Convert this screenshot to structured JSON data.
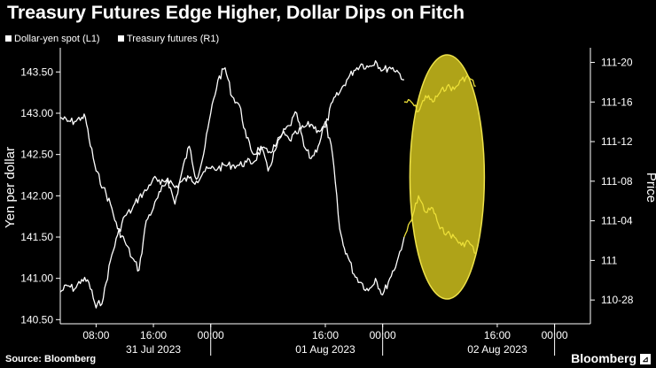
{
  "chart_data": {
    "type": "line",
    "title": "Treasury Futures Edge Higher, Dollar Dips on Fitch",
    "left_axis": {
      "label": "Yen per dollar",
      "ticks": [
        "143.50",
        "143.00",
        "142.50",
        "142.00",
        "141.50",
        "141.00",
        "140.50"
      ],
      "tick_values": [
        143.5,
        143.0,
        142.5,
        142.0,
        141.5,
        141.0,
        140.5
      ],
      "range": [
        140.45,
        143.75
      ]
    },
    "right_axis": {
      "label": "Price",
      "ticks": [
        "111-20",
        "111-16",
        "111-12",
        "111-08",
        "111-04",
        "111",
        "110-28"
      ],
      "tick_values": [
        111.625,
        111.5,
        111.375,
        111.25,
        111.125,
        111.0,
        110.875
      ],
      "range": [
        110.8,
        111.66
      ]
    },
    "x_axis": {
      "time_ticks": [
        "08:00",
        "16:00",
        "00:00",
        "16:00",
        "00:00",
        "16:00",
        "00:00"
      ],
      "time_tick_hours": [
        8,
        16,
        24,
        40,
        48,
        64,
        72
      ],
      "date_labels": [
        {
          "text": "31 Jul 2023",
          "hour": 16
        },
        {
          "text": "01 Aug 2023",
          "hour": 40
        },
        {
          "text": "02 Aug 2023",
          "hour": 64
        }
      ],
      "range_hours": [
        3,
        77
      ]
    },
    "series": [
      {
        "name": "Dollar-yen spot (L1)",
        "axis": "left",
        "x": [
          3,
          4,
          5,
          6,
          6.5,
          7,
          8,
          9,
          10,
          11,
          12,
          13,
          14,
          15,
          16,
          17,
          18,
          19,
          20,
          21,
          22,
          23,
          24,
          25,
          26,
          27,
          28,
          29,
          30,
          31,
          32,
          33,
          34,
          35,
          36,
          37,
          38,
          39,
          40,
          41,
          42,
          42.5,
          43,
          44,
          45,
          46,
          47,
          48,
          49,
          50,
          51
        ],
        "values": [
          142.95,
          142.9,
          142.9,
          142.95,
          142.95,
          142.7,
          142.3,
          142.1,
          141.9,
          141.6,
          141.45,
          141.25,
          141.1,
          141.7,
          141.85,
          142.05,
          142.2,
          141.9,
          142.3,
          142.6,
          142.2,
          142.5,
          143.0,
          143.4,
          143.55,
          143.2,
          143.1,
          142.7,
          142.5,
          142.6,
          142.3,
          142.55,
          142.75,
          142.85,
          143.0,
          142.6,
          142.45,
          142.6,
          142.9,
          142.5,
          141.6,
          141.4,
          141.3,
          141.05,
          140.95,
          140.85,
          141.0,
          140.8,
          141.0,
          141.2,
          141.5
        ]
      },
      {
        "name": "Treasury futures (R1)",
        "axis": "right",
        "x": [
          3,
          4,
          5,
          6,
          7,
          8,
          9,
          10,
          11,
          12,
          13,
          14,
          15,
          16,
          17,
          18,
          19,
          20,
          21,
          22,
          23,
          24,
          25,
          26,
          27,
          28,
          29,
          30,
          31,
          32,
          33,
          34,
          35,
          36,
          37,
          38,
          39,
          40,
          41,
          42,
          43,
          44,
          45,
          46,
          47,
          48,
          49,
          50,
          51
        ],
        "values": [
          110.9,
          110.92,
          110.91,
          110.94,
          110.93,
          110.85,
          110.88,
          111.0,
          111.08,
          111.14,
          111.16,
          111.2,
          111.22,
          111.26,
          111.24,
          111.26,
          111.23,
          111.25,
          111.26,
          111.25,
          111.28,
          111.29,
          111.29,
          111.3,
          111.3,
          111.3,
          111.31,
          111.31,
          111.35,
          111.34,
          111.36,
          111.4,
          111.38,
          111.4,
          111.42,
          111.43,
          111.41,
          111.42,
          111.5,
          111.53,
          111.57,
          111.6,
          111.62,
          111.61,
          111.63,
          111.6,
          111.61,
          111.6,
          111.57
        ]
      }
    ],
    "highlighted_series": [
      {
        "axis": "right",
        "x": [
          51,
          52,
          53,
          54,
          55,
          56,
          57,
          58,
          59,
          60,
          61
        ],
        "values": [
          111.5,
          111.5,
          111.47,
          111.52,
          111.5,
          111.53,
          111.55,
          111.54,
          111.57,
          111.58,
          111.55
        ]
      },
      {
        "axis": "left",
        "x": [
          51,
          52,
          53,
          54,
          55,
          56,
          57,
          58,
          59,
          60,
          61
        ],
        "values": [
          141.5,
          141.7,
          142.0,
          141.8,
          141.85,
          141.6,
          141.55,
          141.5,
          141.4,
          141.45,
          141.3
        ]
      }
    ],
    "highlight_ellipse": {
      "x_center_hours": 57,
      "color": "#e6d82e"
    }
  },
  "legend": {
    "item1": "Dollar-yen spot (L1)",
    "item2": "Treasury futures (R1)"
  },
  "footer": {
    "source": "Source: Bloomberg",
    "brand": "Bloomberg",
    "brand_icon": "bloomberg-icon"
  },
  "colors": {
    "background": "#000000",
    "line": "#ffffff",
    "highlight_line": "#ecdf38",
    "highlight_fill": "#b8ac19",
    "highlight_border": "#eee24a"
  }
}
